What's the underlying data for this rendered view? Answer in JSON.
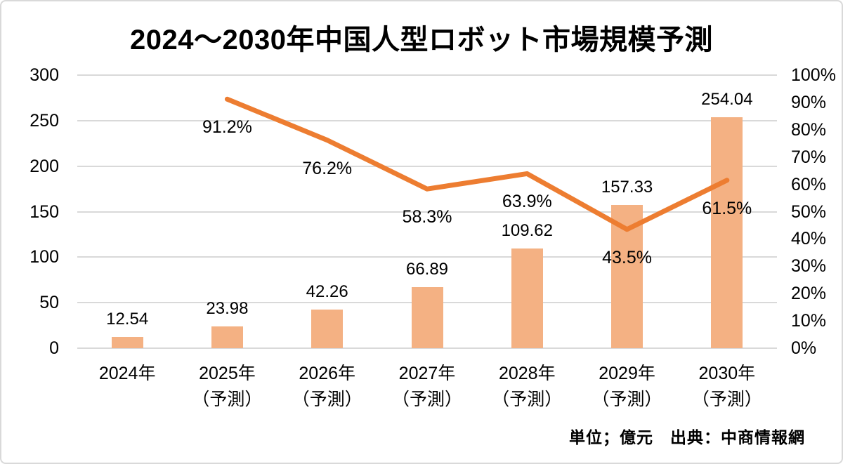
{
  "chart_data": {
    "type": "combo-bar-line",
    "title": "2024～2030年中国人型ロボット市場規模予測",
    "footnote": "単位；億元　出典：中商情報網",
    "categories": [
      "2024年",
      "2025年（予測）",
      "2026年（予測）",
      "2027年（予測）",
      "2028年（予測）",
      "2029年（予測）",
      "2030年（予測）"
    ],
    "x_tick_lines": [
      [
        "2024年"
      ],
      [
        "2025年",
        "（予測）"
      ],
      [
        "2026年",
        "（予測）"
      ],
      [
        "2027年",
        "（予測）"
      ],
      [
        "2028年",
        "（予測）"
      ],
      [
        "2029年",
        "（予測）"
      ],
      [
        "2030年",
        "（予測）"
      ]
    ],
    "bar_series": {
      "axis": "left",
      "color": "#F4B183",
      "values": [
        12.54,
        23.98,
        42.26,
        66.89,
        109.62,
        157.33,
        254.04
      ],
      "data_labels": [
        "12.54",
        "23.98",
        "42.26",
        "66.89",
        "109.62",
        "157.33",
        "254.04"
      ]
    },
    "line_series": {
      "axis": "right",
      "color": "#ED7D31",
      "values": [
        null,
        91.2,
        76.2,
        58.3,
        63.9,
        43.5,
        61.5
      ],
      "data_labels": [
        null,
        "91.2%",
        "76.2%",
        "58.3%",
        "63.9%",
        "43.5%",
        "61.5%"
      ]
    },
    "left_axis": {
      "min": 0,
      "max": 300,
      "ticks": [
        0,
        50,
        100,
        150,
        200,
        250,
        300
      ]
    },
    "right_axis": {
      "min": 0,
      "max": 100,
      "ticks": [
        0,
        10,
        20,
        30,
        40,
        50,
        60,
        70,
        80,
        90,
        100
      ],
      "suffix": "%"
    },
    "grid": {
      "color": "#D9D9D9",
      "horizontal": true
    },
    "legend": "none",
    "background": "#FFFFFF",
    "text_color": "#000000"
  }
}
